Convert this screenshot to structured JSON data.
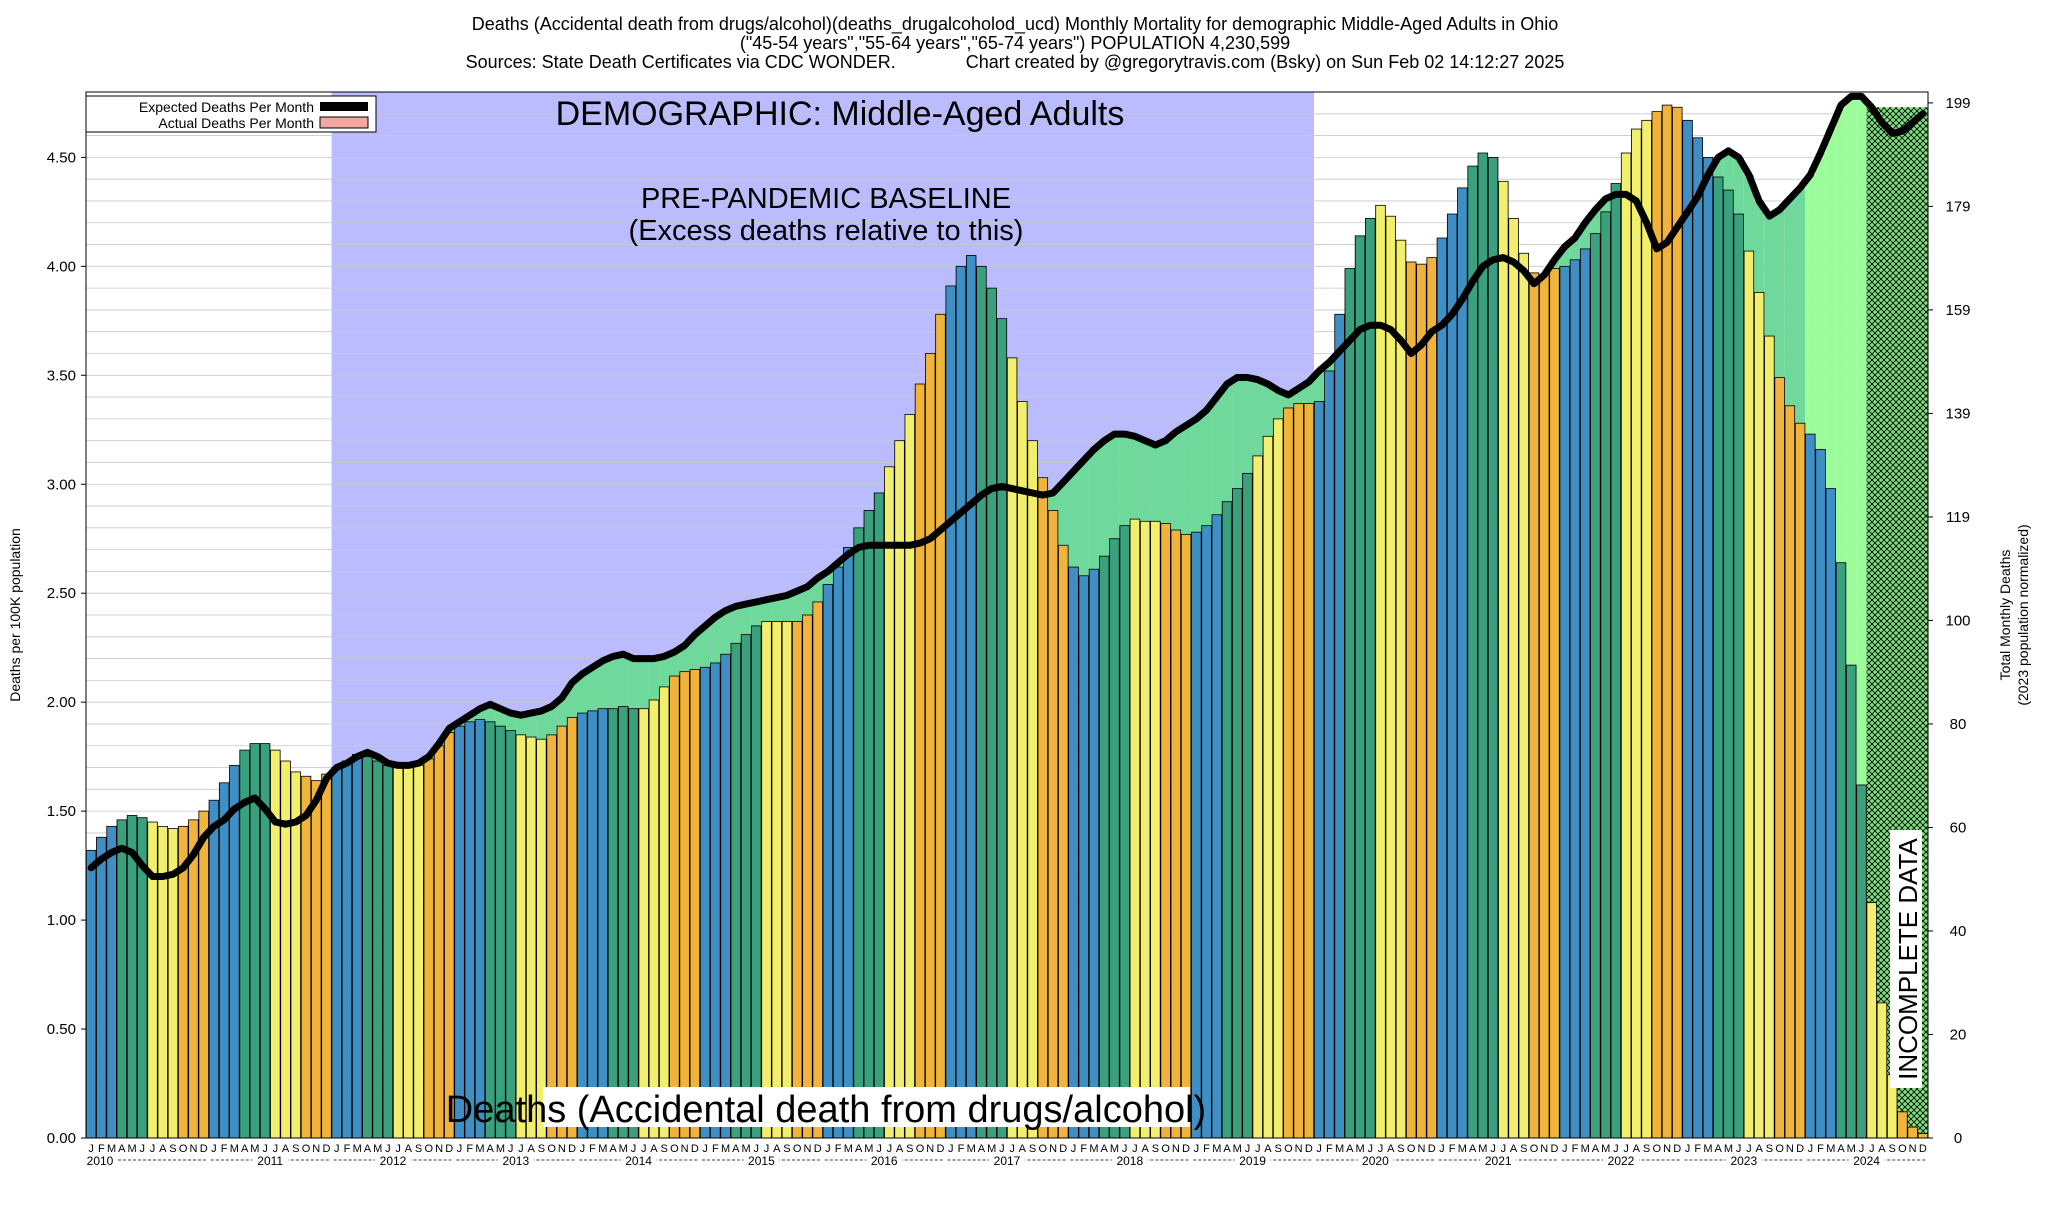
{
  "chart_data": {
    "type": "bar",
    "title_lines": [
      "Deaths (Accidental death from drugs/alcohol)(deaths_drugalcoholod_ucd)  Monthly Mortality for demographic Middle-Aged Adults in Ohio",
      "(\"45-54 years\",\"55-64 years\",\"65-74 years\") POPULATION 4,230,599",
      "Sources: State Death Certificates via CDC WONDER.              Chart created by @gregorytravis.com (Bsky) on Sun Feb 02 14:12:27 2025"
    ],
    "demographic_label": "DEMOGRAPHIC: Middle-Aged Adults",
    "baseline_label_1": "PRE-PANDEMIC BASELINE",
    "baseline_label_2": "(Excess deaths relative to this)",
    "bottom_label": "Deaths (Accidental death from drugs/alcohol)",
    "incomplete_label": "INCOMPLETE DATA",
    "ylabel_left": "Deaths per 100K population",
    "ylabel_right_1": "Total Monthly Deaths",
    "ylabel_right_2": "(2023 population normalized)",
    "legend": [
      {
        "name": "Expected Deaths Per Month",
        "color": "#000000"
      },
      {
        "name": "Actual Deaths Per Month",
        "color": "#f4a6a0"
      }
    ],
    "ylim_left": [
      0,
      4.8
    ],
    "yticks_left": [
      "0.00",
      "0.50",
      "1.00",
      "1.50",
      "2.00",
      "2.50",
      "3.00",
      "3.50",
      "4.00",
      "4.50"
    ],
    "yticks_right": [
      "0",
      "20",
      "40",
      "60",
      "80",
      "100",
      "119",
      "139",
      "159",
      "179",
      "199"
    ],
    "years": [
      "2010",
      "2011",
      "2012",
      "2013",
      "2014",
      "2015",
      "2016",
      "2017",
      "2018",
      "2019",
      "2020",
      "2021",
      "2022",
      "2023",
      "2024"
    ],
    "month_letters": [
      "J",
      "F",
      "M",
      "A",
      "M",
      "J",
      "J",
      "A",
      "S",
      "O",
      "N",
      "D"
    ],
    "baseline_period": {
      "start": "2012-01",
      "end": "2019-12"
    },
    "incomplete_period": {
      "start": "2024-07",
      "end": "2024-12"
    },
    "season_colors": [
      "#3f8fc4",
      "#3aa07e",
      "#f3ef6e",
      "#f0b43c"
    ],
    "values": [
      1.32,
      1.38,
      1.43,
      1.46,
      1.48,
      1.47,
      1.45,
      1.43,
      1.42,
      1.43,
      1.46,
      1.5,
      1.55,
      1.63,
      1.71,
      1.78,
      1.81,
      1.81,
      1.78,
      1.73,
      1.68,
      1.66,
      1.64,
      1.67,
      1.7,
      1.73,
      1.76,
      1.75,
      1.73,
      1.71,
      1.7,
      1.7,
      1.71,
      1.74,
      1.8,
      1.86,
      1.89,
      1.91,
      1.92,
      1.91,
      1.89,
      1.87,
      1.85,
      1.84,
      1.83,
      1.85,
      1.89,
      1.93,
      1.95,
      1.96,
      1.97,
      1.97,
      1.98,
      1.97,
      1.97,
      2.01,
      2.07,
      2.12,
      2.14,
      2.15,
      2.16,
      2.18,
      2.22,
      2.27,
      2.31,
      2.35,
      2.37,
      2.37,
      2.37,
      2.37,
      2.4,
      2.46,
      2.54,
      2.62,
      2.71,
      2.8,
      2.88,
      2.96,
      3.08,
      3.2,
      3.32,
      3.46,
      3.6,
      3.78,
      3.91,
      4.0,
      4.05,
      4.0,
      3.9,
      3.76,
      3.58,
      3.38,
      3.2,
      3.03,
      2.88,
      2.72,
      2.62,
      2.58,
      2.61,
      2.67,
      2.75,
      2.81,
      2.84,
      2.83,
      2.83,
      2.82,
      2.79,
      2.77,
      2.78,
      2.81,
      2.86,
      2.92,
      2.98,
      3.05,
      3.13,
      3.22,
      3.3,
      3.35,
      3.37,
      3.37,
      3.38,
      3.52,
      3.78,
      3.99,
      4.14,
      4.22,
      4.28,
      4.23,
      4.12,
      4.02,
      4.01,
      4.04,
      4.13,
      4.24,
      4.36,
      4.46,
      4.52,
      4.5,
      4.39,
      4.22,
      4.06,
      3.97,
      3.96,
      3.99,
      4.0,
      4.03,
      4.08,
      4.15,
      4.25,
      4.38,
      4.52,
      4.63,
      4.67,
      4.71,
      4.74,
      4.73,
      4.67,
      4.59,
      4.5,
      4.41,
      4.35,
      4.24,
      4.07,
      3.88,
      3.68,
      3.49,
      3.36,
      3.28,
      3.23,
      3.16,
      2.98,
      2.64,
      2.17,
      1.62,
      1.08,
      0.62,
      0.29,
      0.12,
      0.05,
      0.02
    ],
    "expected": [
      1.24,
      1.28,
      1.31,
      1.33,
      1.31,
      1.25,
      1.2,
      1.2,
      1.21,
      1.24,
      1.3,
      1.38,
      1.43,
      1.46,
      1.51,
      1.54,
      1.56,
      1.51,
      1.45,
      1.44,
      1.45,
      1.48,
      1.55,
      1.65,
      1.7,
      1.72,
      1.75,
      1.77,
      1.75,
      1.72,
      1.71,
      1.71,
      1.72,
      1.75,
      1.81,
      1.88,
      1.91,
      1.94,
      1.97,
      1.99,
      1.97,
      1.95,
      1.94,
      1.95,
      1.96,
      1.98,
      2.02,
      2.09,
      2.13,
      2.16,
      2.19,
      2.21,
      2.22,
      2.2,
      2.2,
      2.2,
      2.21,
      2.23,
      2.26,
      2.31,
      2.35,
      2.39,
      2.42,
      2.44,
      2.45,
      2.46,
      2.47,
      2.48,
      2.49,
      2.51,
      2.53,
      2.57,
      2.6,
      2.64,
      2.68,
      2.71,
      2.72,
      2.72,
      2.72,
      2.72,
      2.72,
      2.73,
      2.75,
      2.79,
      2.83,
      2.87,
      2.91,
      2.95,
      2.98,
      2.99,
      2.98,
      2.97,
      2.96,
      2.95,
      2.96,
      3.01,
      3.06,
      3.11,
      3.16,
      3.2,
      3.23,
      3.23,
      3.22,
      3.2,
      3.18,
      3.2,
      3.24,
      3.27,
      3.3,
      3.34,
      3.4,
      3.46,
      3.49,
      3.49,
      3.48,
      3.46,
      3.43,
      3.41,
      3.44,
      3.47,
      3.52,
      3.56,
      3.61,
      3.66,
      3.71,
      3.73,
      3.73,
      3.71,
      3.66,
      3.6,
      3.64,
      3.7,
      3.73,
      3.78,
      3.85,
      3.93,
      4.0,
      4.03,
      4.04,
      4.02,
      3.98,
      3.92,
      3.96,
      4.03,
      4.09,
      4.13,
      4.2,
      4.26,
      4.31,
      4.33,
      4.33,
      4.3,
      4.2,
      4.08,
      4.11,
      4.18,
      4.25,
      4.32,
      4.42,
      4.5,
      4.53,
      4.5,
      4.42,
      4.3,
      4.23,
      4.26,
      4.31,
      4.36,
      4.42,
      4.52,
      4.63,
      4.74,
      4.78,
      4.78,
      4.73,
      4.66,
      4.61,
      4.62,
      4.66,
      4.7
    ]
  }
}
